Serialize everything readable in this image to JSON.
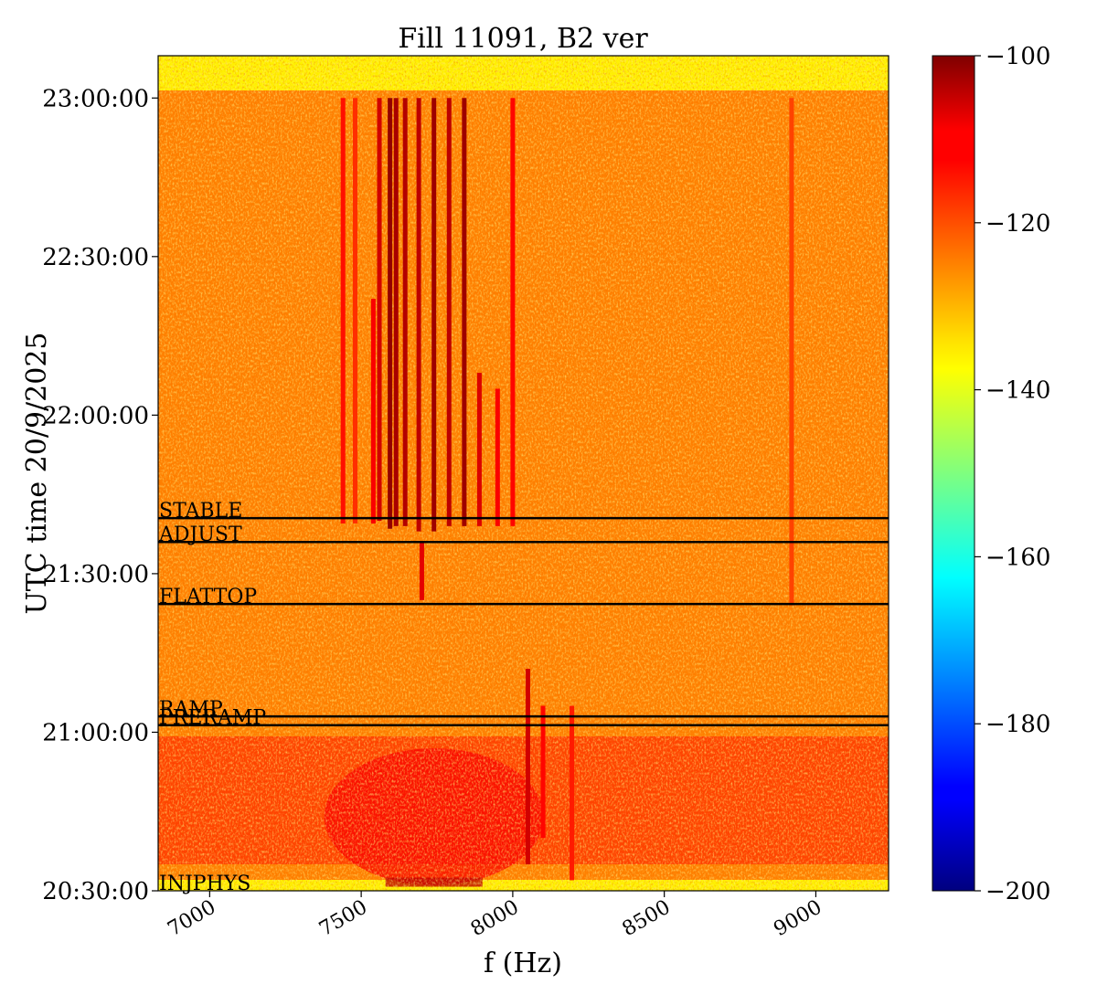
{
  "chart_data": {
    "type": "heatmap",
    "title": "Fill 11091, B2 ver",
    "xlabel": "f (Hz)",
    "ylabel": "UTC time 20/9/2025",
    "x_range": [
      6830,
      9240
    ],
    "x_ticks": [
      7000,
      7500,
      8000,
      8500,
      9000
    ],
    "x_tick_labels": [
      "7000",
      "7500",
      "8000",
      "8500",
      "9000"
    ],
    "y_range": [
      "20:30:00",
      "23:08:00"
    ],
    "y_ticks": [
      "20:30:00",
      "21:00:00",
      "21:30:00",
      "22:00:00",
      "22:30:00",
      "23:00:00"
    ],
    "colorbar": {
      "colormap": "jet",
      "range": [
        -200,
        -100
      ],
      "ticks": [
        -100,
        -120,
        -140,
        -160,
        -180,
        -200
      ],
      "tick_labels": [
        "−100",
        "−120",
        "−140",
        "−160",
        "−180",
        "−200"
      ]
    },
    "background_level": -125,
    "markers": [
      {
        "label": "STABLE",
        "time": "21:40:30"
      },
      {
        "label": "ADJUST",
        "time": "21:36:00"
      },
      {
        "label": "FLATTOP",
        "time": "21:24:15"
      },
      {
        "label": "RAMP",
        "time": "21:03:00"
      },
      {
        "label": "PRERAMP",
        "time": "21:01:20"
      },
      {
        "label": "INJPHYS",
        "time": "20:30:00"
      }
    ],
    "spectral_lines": [
      {
        "f": 7440,
        "start": "21:39:30",
        "end": "23:00:00",
        "level": -114
      },
      {
        "f": 7480,
        "start": "21:39:30",
        "end": "23:00:00",
        "level": -117
      },
      {
        "f": 7540,
        "start": "21:39:30",
        "end": "22:22:00",
        "level": -112
      },
      {
        "f": 7560,
        "start": "21:40:00",
        "end": "23:00:00",
        "level": -108
      },
      {
        "f": 7595,
        "start": "21:38:30",
        "end": "23:00:00",
        "level": -102
      },
      {
        "f": 7615,
        "start": "21:39:00",
        "end": "23:00:00",
        "level": -104
      },
      {
        "f": 7645,
        "start": "21:39:00",
        "end": "23:00:00",
        "level": -105
      },
      {
        "f": 7690,
        "start": "21:38:00",
        "end": "23:00:00",
        "level": -106
      },
      {
        "f": 7700,
        "start": "21:25:00",
        "end": "21:36:00",
        "level": -110
      },
      {
        "f": 7740,
        "start": "21:38:00",
        "end": "23:00:00",
        "level": -103
      },
      {
        "f": 7790,
        "start": "21:39:00",
        "end": "23:00:00",
        "level": -106
      },
      {
        "f": 7840,
        "start": "21:39:00",
        "end": "23:00:00",
        "level": -103
      },
      {
        "f": 7890,
        "start": "21:39:00",
        "end": "22:08:00",
        "level": -109
      },
      {
        "f": 7950,
        "start": "21:39:00",
        "end": "22:05:00",
        "level": -112
      },
      {
        "f": 8000,
        "start": "21:39:00",
        "end": "23:00:00",
        "level": -113
      },
      {
        "f": 8050,
        "start": "20:35:00",
        "end": "21:12:00",
        "level": -108
      },
      {
        "f": 8100,
        "start": "20:40:00",
        "end": "21:05:00",
        "level": -113
      },
      {
        "f": 8195,
        "start": "20:32:00",
        "end": "21:05:00",
        "level": -115
      },
      {
        "f": 8920,
        "start": "21:24:00",
        "end": "23:00:00",
        "level": -119
      }
    ]
  }
}
